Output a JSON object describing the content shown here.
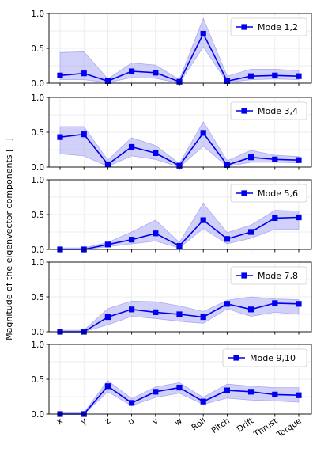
{
  "figure": {
    "ylabel": "Magnitude of the eigenvector components [−]"
  },
  "chart_data": {
    "type": "line",
    "categories": [
      "x",
      "y",
      "z",
      "u",
      "v",
      "w",
      "Roll",
      "Pitch",
      "Drift",
      "Thrust",
      "Torque"
    ],
    "ylim": [
      0,
      1
    ],
    "yticks": [
      "0.0",
      "0.5",
      "1.0"
    ],
    "grid": true,
    "legend_position": "top-right",
    "line_color": "#0000ee",
    "band_color": "#aaaaf4",
    "marker": "square",
    "panels": [
      {
        "series_name": "Mode 1,2",
        "values": [
          0.11,
          0.14,
          0.03,
          0.17,
          0.15,
          0.02,
          0.71,
          0.03,
          0.1,
          0.11,
          0.1
        ],
        "lower": [
          0.05,
          0.05,
          0.01,
          0.08,
          0.07,
          0.0,
          0.52,
          0.01,
          0.05,
          0.06,
          0.05
        ],
        "upper": [
          0.44,
          0.45,
          0.06,
          0.29,
          0.26,
          0.05,
          0.93,
          0.1,
          0.2,
          0.2,
          0.18
        ]
      },
      {
        "series_name": "Mode 3,4",
        "values": [
          0.43,
          0.47,
          0.04,
          0.29,
          0.2,
          0.02,
          0.49,
          0.03,
          0.14,
          0.11,
          0.1
        ],
        "lower": [
          0.19,
          0.16,
          0.01,
          0.16,
          0.11,
          0.0,
          0.3,
          0.01,
          0.07,
          0.07,
          0.06
        ],
        "upper": [
          0.58,
          0.58,
          0.1,
          0.42,
          0.31,
          0.05,
          0.65,
          0.09,
          0.24,
          0.17,
          0.15
        ]
      },
      {
        "series_name": "Mode 5,6",
        "values": [
          0.0,
          0.0,
          0.07,
          0.14,
          0.23,
          0.05,
          0.42,
          0.15,
          0.25,
          0.45,
          0.46
        ],
        "lower": [
          0.0,
          0.0,
          0.04,
          0.08,
          0.12,
          0.02,
          0.3,
          0.08,
          0.16,
          0.29,
          0.29
        ],
        "upper": [
          0.02,
          0.02,
          0.1,
          0.25,
          0.42,
          0.1,
          0.66,
          0.24,
          0.35,
          0.56,
          0.55
        ]
      },
      {
        "series_name": "Mode 7,8",
        "values": [
          0.0,
          0.0,
          0.21,
          0.32,
          0.28,
          0.25,
          0.21,
          0.4,
          0.32,
          0.41,
          0.4
        ],
        "lower": [
          0.0,
          0.0,
          0.1,
          0.22,
          0.19,
          0.15,
          0.12,
          0.33,
          0.22,
          0.28,
          0.25
        ],
        "upper": [
          0.02,
          0.02,
          0.33,
          0.44,
          0.43,
          0.37,
          0.29,
          0.45,
          0.5,
          0.47,
          0.46
        ]
      },
      {
        "series_name": "Mode 9,10",
        "values": [
          0.0,
          0.0,
          0.4,
          0.16,
          0.32,
          0.38,
          0.18,
          0.34,
          0.32,
          0.28,
          0.27
        ],
        "lower": [
          0.0,
          0.0,
          0.32,
          0.12,
          0.24,
          0.3,
          0.14,
          0.23,
          0.2,
          0.19,
          0.17
        ],
        "upper": [
          0.02,
          0.02,
          0.48,
          0.22,
          0.39,
          0.45,
          0.24,
          0.43,
          0.4,
          0.38,
          0.38
        ]
      }
    ]
  }
}
